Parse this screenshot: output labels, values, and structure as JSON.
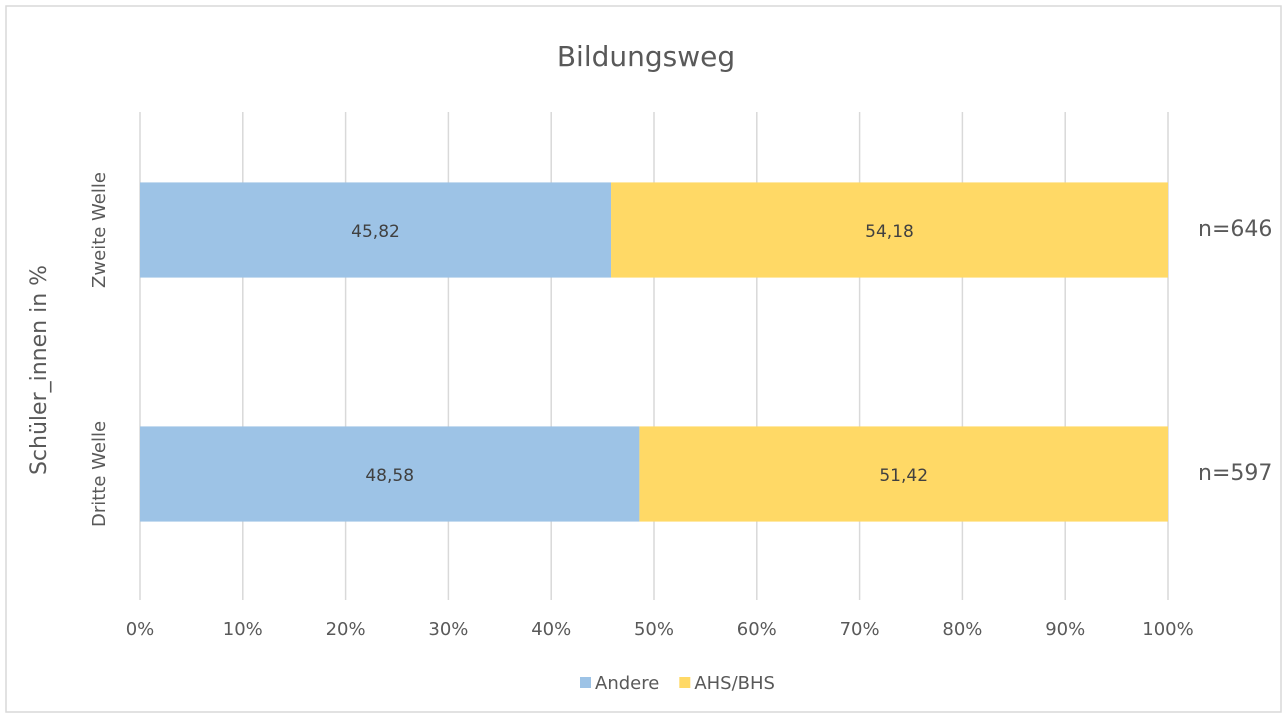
{
  "chart_data": {
    "type": "bar",
    "orientation": "horizontal",
    "stacked": true,
    "title": "Bildungsweg",
    "y_label": "Schüler_innen in %",
    "categories": [
      "Zweite Welle",
      "Dritte Welle"
    ],
    "series": [
      {
        "name": "Andere",
        "color": "#9dc3e6",
        "values": [
          45.82,
          48.58
        ],
        "value_labels": [
          "45,82",
          "48,58"
        ]
      },
      {
        "name": "AHS/BHS",
        "color": "#ffd966",
        "values": [
          54.18,
          51.42
        ],
        "value_labels": [
          "54,18",
          "51,42"
        ]
      }
    ],
    "annotations": [
      "n=646",
      "n=597"
    ],
    "xlim": [
      0,
      100
    ],
    "xticks": [
      {
        "value": 0,
        "label": "0%"
      },
      {
        "value": 10,
        "label": "10%"
      },
      {
        "value": 20,
        "label": "20%"
      },
      {
        "value": 30,
        "label": "30%"
      },
      {
        "value": 40,
        "label": "40%"
      },
      {
        "value": 50,
        "label": "50%"
      },
      {
        "value": 60,
        "label": "60%"
      },
      {
        "value": 70,
        "label": "70%"
      },
      {
        "value": 80,
        "label": "80%"
      },
      {
        "value": 90,
        "label": "90%"
      },
      {
        "value": 100,
        "label": "100%"
      }
    ],
    "grid": true,
    "legend": "bottom"
  }
}
